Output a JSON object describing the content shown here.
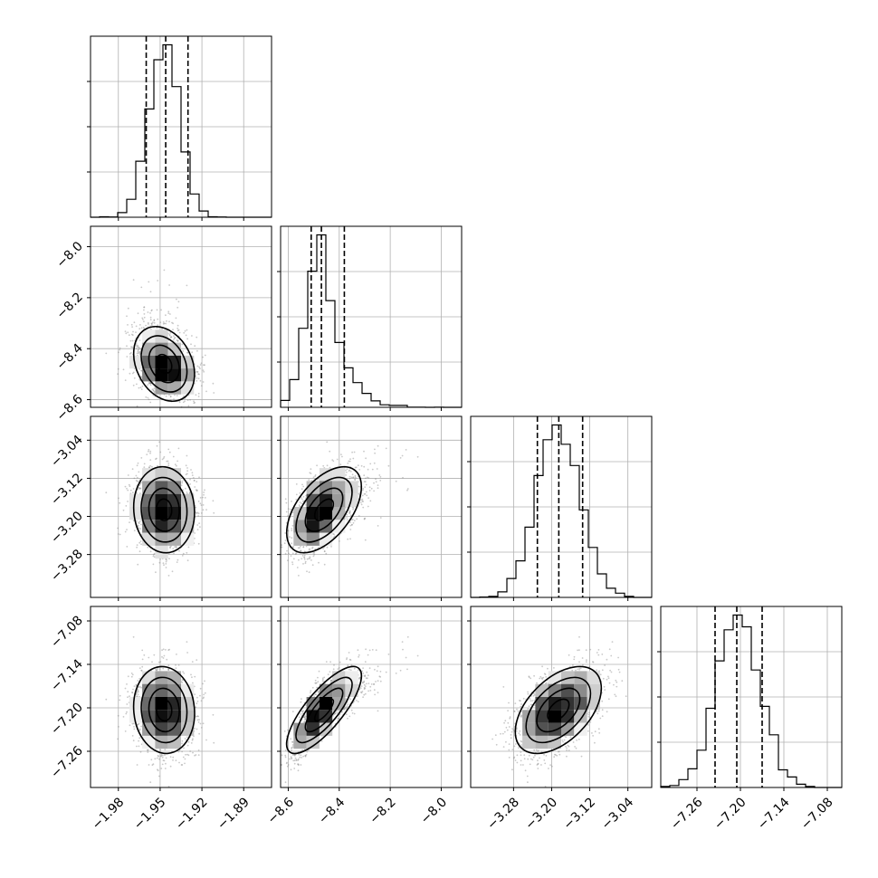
{
  "chart_data": {
    "type": "corner",
    "title": "",
    "grid": true,
    "params": [
      {
        "range": [
          -2.0,
          -1.87
        ],
        "ticks": [
          -1.98,
          -1.95,
          -1.92,
          -1.89
        ],
        "tick_labels": [
          "−1.98",
          "−1.95",
          "−1.92",
          "−1.89"
        ],
        "mean": -1.947,
        "sd": 0.011,
        "quantiles": [
          -1.96,
          -1.946,
          -1.93
        ],
        "skew": 0
      },
      {
        "range": [
          -8.63,
          -7.92
        ],
        "ticks": [
          -8.6,
          -8.4,
          -8.2,
          -8.0
        ],
        "tick_labels": [
          "−8.6",
          "−8.4",
          "−8.2",
          "−8.0"
        ],
        "mean": -8.47,
        "sd": 0.055,
        "quantiles": [
          -8.51,
          -8.47,
          -8.38
        ],
        "skew": 3
      },
      {
        "range": [
          -3.37,
          -2.99
        ],
        "ticks": [
          -3.28,
          -3.2,
          -3.12,
          -3.04
        ],
        "tick_labels": [
          "−3.28",
          "−3.20",
          "−3.12",
          "−3.04"
        ],
        "mean": -3.185,
        "sd": 0.045,
        "quantiles": [
          -3.23,
          -3.185,
          -3.135
        ],
        "skew": 0
      },
      {
        "range": [
          -7.31,
          -7.06
        ],
        "ticks": [
          -7.26,
          -7.2,
          -7.14,
          -7.08
        ],
        "tick_labels": [
          "−7.26",
          "−7.20",
          "−7.14",
          "−7.08"
        ],
        "mean": -7.203,
        "sd": 0.03,
        "quantiles": [
          -7.235,
          -7.205,
          -7.17
        ],
        "skew": 0
      }
    ],
    "correlations": [
      [
        1,
        -0.25,
        -0.05,
        -0.05
      ],
      [
        -0.25,
        1,
        0.55,
        0.8
      ],
      [
        -0.05,
        0.55,
        1,
        0.5
      ],
      [
        -0.05,
        0.8,
        0.5,
        1
      ]
    ]
  }
}
